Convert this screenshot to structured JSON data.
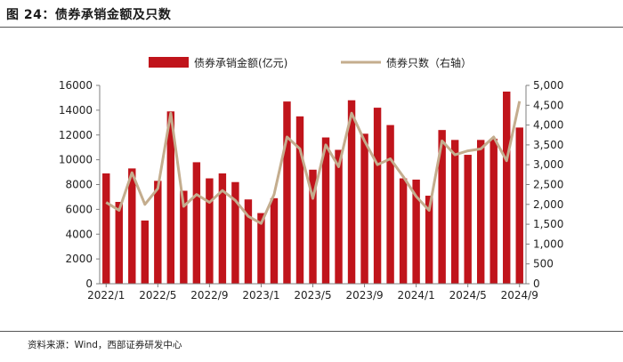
{
  "title": "图 24：债券承销金额及只数",
  "source": "资料来源：Wind，西部证券研发中心",
  "colors": {
    "bar": "#c0141b",
    "line": "#c4ad8e",
    "axis": "#7f7f7f"
  },
  "chart_data": {
    "type": "bar+line",
    "categories": [
      "2022/1",
      "2022/2",
      "2022/3",
      "2022/4",
      "2022/5",
      "2022/6",
      "2022/7",
      "2022/8",
      "2022/9",
      "2022/10",
      "2022/11",
      "2022/12",
      "2023/1",
      "2023/2",
      "2023/3",
      "2023/4",
      "2023/5",
      "2023/6",
      "2023/7",
      "2023/8",
      "2023/9",
      "2023/10",
      "2023/11",
      "2023/12",
      "2024/1",
      "2024/2",
      "2024/3",
      "2024/4",
      "2024/5",
      "2024/6",
      "2024/7",
      "2024/8",
      "2024/9"
    ],
    "x_tick_labels": [
      "2022/1",
      "2022/5",
      "2022/9",
      "2023/1",
      "2023/5",
      "2023/9",
      "2024/1",
      "2024/5",
      "2024/9"
    ],
    "x_tick_indices": [
      0,
      4,
      8,
      12,
      16,
      20,
      24,
      28,
      32
    ],
    "series": [
      {
        "name": "债券承销金额(亿元)",
        "type": "bar",
        "axis": "left",
        "values": [
          8900,
          6600,
          9300,
          5100,
          8300,
          13900,
          7500,
          9800,
          8500,
          8900,
          8200,
          6800,
          5700,
          6900,
          14700,
          13500,
          9200,
          11800,
          10800,
          14800,
          12100,
          14200,
          12800,
          8500,
          8400,
          7100,
          12400,
          11600,
          10400,
          11600,
          11700,
          15500,
          12600
        ]
      },
      {
        "name": "债券只数（右轴）",
        "type": "line",
        "axis": "right",
        "values": [
          2050,
          1850,
          2800,
          2000,
          2400,
          4300,
          1950,
          2250,
          2050,
          2350,
          2100,
          1700,
          1520,
          2250,
          3700,
          3400,
          2150,
          3500,
          2950,
          4300,
          3600,
          3000,
          3150,
          2700,
          2200,
          1850,
          3600,
          3250,
          3350,
          3400,
          3700,
          3100,
          4600
        ]
      }
    ],
    "y_left": {
      "ylim": [
        0,
        16000
      ],
      "ticks": [
        "0",
        "2000",
        "4000",
        "6000",
        "8000",
        "10000",
        "12000",
        "14000",
        "16000"
      ]
    },
    "y_right": {
      "ylim": [
        0,
        5000
      ],
      "ticks": [
        "0",
        "500",
        "1,000",
        "1,500",
        "2,000",
        "2,500",
        "3,000",
        "3,500",
        "4,000",
        "4,500",
        "5,000"
      ]
    },
    "legend_placement": "top-center",
    "grid": false
  }
}
